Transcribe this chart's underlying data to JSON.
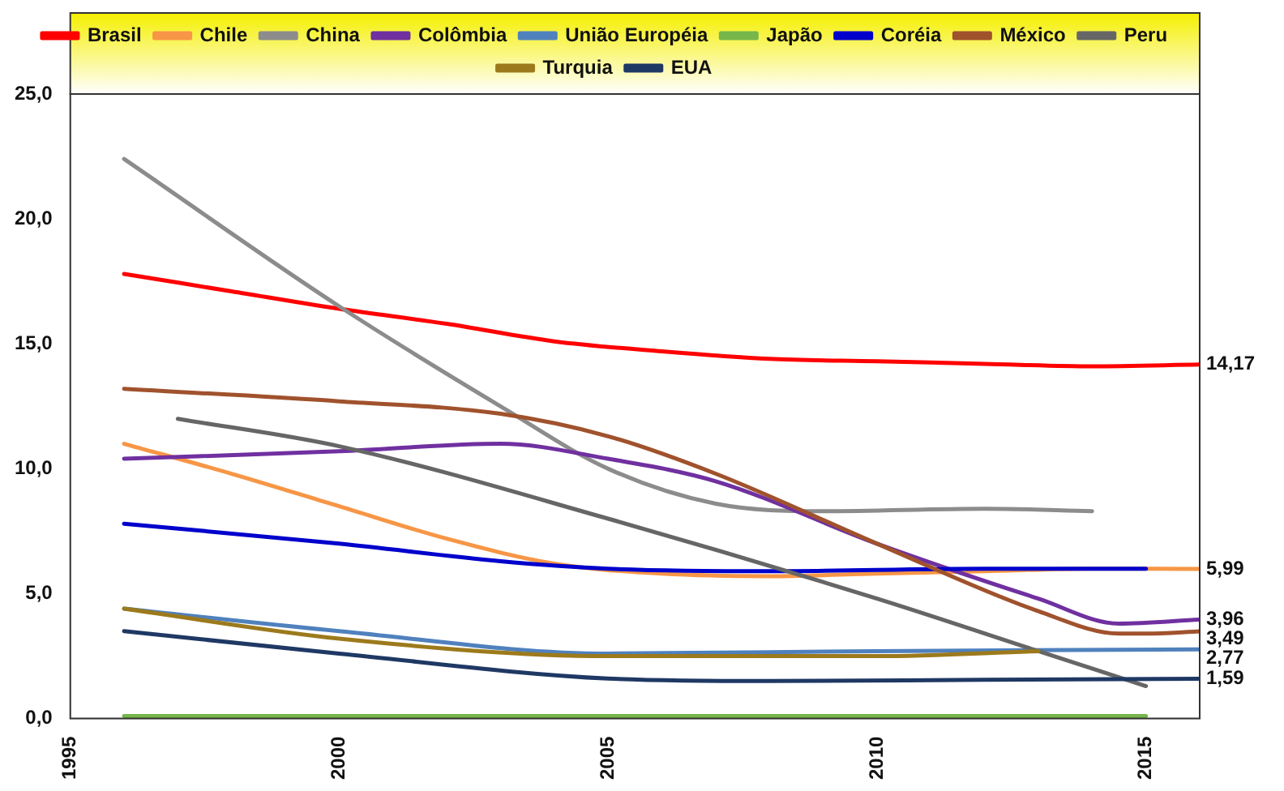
{
  "chart_data": {
    "type": "line",
    "xlim": [
      1995,
      2016
    ],
    "xticks": [
      1995,
      2000,
      2005,
      2010,
      2015
    ],
    "ylim": [
      0,
      25
    ],
    "yticks": [
      {
        "value": 0,
        "label": "0,0"
      },
      {
        "value": 5,
        "label": "5,0"
      },
      {
        "value": 10,
        "label": "10,0"
      },
      {
        "value": 15,
        "label": "15,0"
      },
      {
        "value": 20,
        "label": "20,0"
      },
      {
        "value": 25,
        "label": "25,0"
      }
    ],
    "grid": false,
    "legend": "top",
    "marker": "none",
    "line_style": "solid",
    "series": [
      {
        "name": "Brasil",
        "color": "#ff0000",
        "x": [
          1996,
          1998,
          2000,
          2002,
          2004,
          2006,
          2008,
          2010,
          2012,
          2014,
          2016
        ],
        "values": [
          17.8,
          17.1,
          16.4,
          15.8,
          15.1,
          14.7,
          14.4,
          14.3,
          14.2,
          14.1,
          14.17
        ],
        "value_labels": [
          null,
          null,
          null,
          null,
          null,
          null,
          null,
          null,
          null,
          null,
          "14,17"
        ]
      },
      {
        "name": "Chile",
        "color": "#f79646",
        "x": [
          1996,
          1998,
          2000,
          2002,
          2004,
          2006,
          2008,
          2010,
          2012,
          2014,
          2016
        ],
        "values": [
          11.0,
          9.8,
          8.5,
          7.2,
          6.2,
          5.8,
          5.7,
          5.8,
          5.9,
          6.0,
          5.99
        ],
        "value_labels": [
          null,
          null,
          null,
          null,
          null,
          null,
          null,
          null,
          null,
          null,
          "5,99"
        ]
      },
      {
        "name": "China",
        "color": "#8c8c8c",
        "x": [
          1996,
          2000,
          2003,
          2005,
          2007,
          2009,
          2012,
          2014
        ],
        "values": [
          22.4,
          16.5,
          12.5,
          10.0,
          8.6,
          8.3,
          8.4,
          8.3
        ]
      },
      {
        "name": "Colômbia",
        "color": "#7030a0",
        "x": [
          1996,
          2000,
          2003,
          2005,
          2007,
          2010,
          2013,
          2014.5,
          2016
        ],
        "values": [
          10.4,
          10.7,
          11.0,
          10.4,
          9.5,
          7.0,
          4.8,
          3.8,
          3.96
        ],
        "value_labels": [
          null,
          null,
          null,
          null,
          null,
          null,
          null,
          null,
          "3,96"
        ]
      },
      {
        "name": "União Européia",
        "color": "#4f81bd",
        "x": [
          1996,
          2000,
          2005,
          2010,
          2016
        ],
        "values": [
          4.4,
          3.5,
          2.6,
          2.7,
          2.77
        ],
        "value_labels": [
          null,
          null,
          null,
          null,
          "2,77"
        ]
      },
      {
        "name": "Japão",
        "color": "#77b64a",
        "x": [
          1996,
          2000,
          2005,
          2010,
          2015
        ],
        "values": [
          0.1,
          0.1,
          0.1,
          0.1,
          0.1
        ]
      },
      {
        "name": "Coréia",
        "color": "#0000cc",
        "x": [
          1996,
          2000,
          2003,
          2005,
          2008,
          2012,
          2015
        ],
        "values": [
          7.8,
          7.0,
          6.3,
          6.0,
          5.9,
          6.0,
          6.0
        ]
      },
      {
        "name": "México",
        "color": "#a0522d",
        "x": [
          1996,
          2000,
          2003,
          2005,
          2007,
          2010,
          2013,
          2014.5,
          2015,
          2016
        ],
        "values": [
          13.2,
          12.7,
          12.2,
          11.3,
          9.8,
          7.0,
          4.3,
          3.4,
          3.4,
          3.49
        ],
        "value_labels": [
          null,
          null,
          null,
          null,
          null,
          null,
          null,
          null,
          null,
          "3,49"
        ]
      },
      {
        "name": "Peru",
        "color": "#666666",
        "x": [
          1997,
          2000,
          2005,
          2010,
          2013,
          2015
        ],
        "values": [
          12.0,
          10.9,
          8.0,
          4.8,
          2.7,
          1.3
        ]
      },
      {
        "name": "Turquia",
        "color": "#9c7a1c",
        "x": [
          1996,
          2000,
          2005,
          2010,
          2013
        ],
        "values": [
          4.4,
          3.2,
          2.5,
          2.5,
          2.7
        ]
      },
      {
        "name": "EUA",
        "color": "#1f3864",
        "x": [
          1996,
          2000,
          2005,
          2008,
          2012,
          2016
        ],
        "values": [
          3.5,
          2.6,
          1.6,
          1.5,
          1.55,
          1.59
        ],
        "value_labels": [
          null,
          null,
          null,
          null,
          null,
          "1,59"
        ]
      }
    ]
  }
}
